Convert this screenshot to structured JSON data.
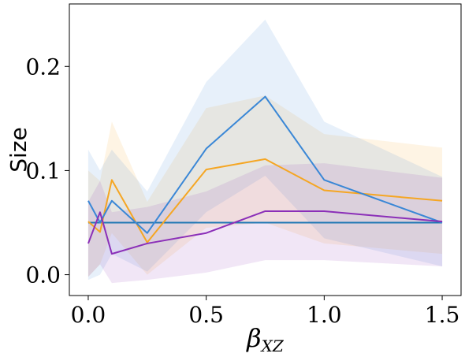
{
  "chart_data": {
    "type": "line",
    "xlabel_base": "β",
    "xlabel_sub": "XZ",
    "ylabel": "Size",
    "xlim": [
      -0.08,
      1.58
    ],
    "ylim": [
      -0.02,
      0.26
    ],
    "x_ticks": [
      0.0,
      0.5,
      1.0,
      1.5
    ],
    "x_tick_labels": [
      "0.0",
      "0.5",
      "1.0",
      "1.5"
    ],
    "y_ticks": [
      0.0,
      0.1,
      0.2
    ],
    "y_tick_labels": [
      "0.0",
      "0.1",
      "0.2"
    ],
    "grid": false,
    "legend": "none",
    "reference_line": {
      "y": 0.05,
      "color": "#1f77b4"
    },
    "series": [
      {
        "color": "#f5a623",
        "x": [
          0.0,
          0.05,
          0.1,
          0.25,
          0.5,
          0.75,
          1.0,
          1.5
        ],
        "y": [
          0.051,
          0.041,
          0.091,
          0.031,
          0.101,
          0.111,
          0.081,
          0.071
        ],
        "lower": [
          -0.002,
          0.01,
          0.04,
          0.0,
          0.045,
          0.05,
          0.03,
          0.02
        ],
        "upper": [
          0.1,
          0.09,
          0.147,
          0.07,
          0.16,
          0.172,
          0.135,
          0.122
        ]
      },
      {
        "color": "#3a87d6",
        "x": [
          0.0,
          0.05,
          0.1,
          0.25,
          0.5,
          0.75,
          1.0,
          1.5
        ],
        "y": [
          0.071,
          0.05,
          0.071,
          0.04,
          0.121,
          0.171,
          0.091,
          0.05
        ],
        "lower": [
          -0.005,
          0.0,
          0.02,
          0.003,
          0.06,
          0.095,
          0.035,
          0.008
        ],
        "upper": [
          0.12,
          0.1,
          0.12,
          0.08,
          0.185,
          0.245,
          0.147,
          0.094
        ]
      },
      {
        "color": "#8b2fb8",
        "x": [
          0.0,
          0.05,
          0.1,
          0.25,
          0.5,
          0.75,
          1.0,
          1.5
        ],
        "y": [
          0.03,
          0.06,
          0.02,
          0.03,
          0.04,
          0.061,
          0.061,
          0.051
        ],
        "lower": [
          -0.002,
          0.01,
          -0.008,
          -0.005,
          0.002,
          0.014,
          0.014,
          0.008
        ],
        "upper": [
          0.07,
          0.09,
          0.06,
          0.065,
          0.08,
          0.105,
          0.107,
          0.093
        ]
      }
    ]
  }
}
